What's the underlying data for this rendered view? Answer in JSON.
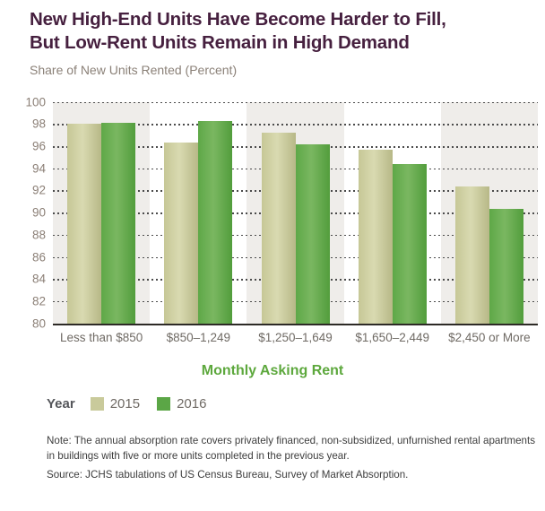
{
  "header": {
    "title_lines": [
      "New High-End Units Have Become Harder to Fill,",
      "But Low-Rent Units Remain in High Demand"
    ],
    "subtitle": "Share of New Units Rented (Percent)"
  },
  "chart_data": {
    "type": "bar",
    "title": "New High-End Units Have Become Harder to Fill, But Low-Rent Units Remain in High Demand",
    "ylabel": "Share of New Units Rented (Percent)",
    "xlabel": "Monthly Asking Rent",
    "categories": [
      "Less than $850",
      "$850–1,249",
      "$1,250–1,649",
      "$1,650–2,449",
      "$2,450 or More"
    ],
    "series": [
      {
        "name": "2015",
        "color": "#c9ca9b",
        "values": [
          98.0,
          96.3,
          97.2,
          95.7,
          92.4
        ]
      },
      {
        "name": "2016",
        "color": "#5ba646",
        "values": [
          98.1,
          98.3,
          96.2,
          94.4,
          90.3
        ]
      }
    ],
    "ylim": [
      80,
      100
    ],
    "y_ticks": [
      100,
      98,
      96,
      94,
      92,
      90,
      88,
      86,
      84,
      82,
      80
    ],
    "grid": "horizontal dotted lines at every 2 units, solid baseline at 80",
    "band_shading": "alternating category background shading starting with first category",
    "legend_position": "bottom-left"
  },
  "legend": {
    "title": "Year"
  },
  "footer": {
    "note": "Note: The annual absorption rate covers privately financed, non-subsidized, unfurnished rental apartments in buildings with five or more units completed in the previous year.",
    "source": "Source: JCHS tabulations of US Census Bureau, Survey of Market Absorption."
  },
  "colors": {
    "title_text": "#46203f",
    "subtitle_text": "#8b8178",
    "axis_label_text": "#8b7f76",
    "category_label_text": "#6f6a64",
    "x_axis_title_text": "#5da83d",
    "band_shade": "#efedea",
    "series_2015": "#c9ca9b",
    "series_2016": "#5ba646"
  }
}
